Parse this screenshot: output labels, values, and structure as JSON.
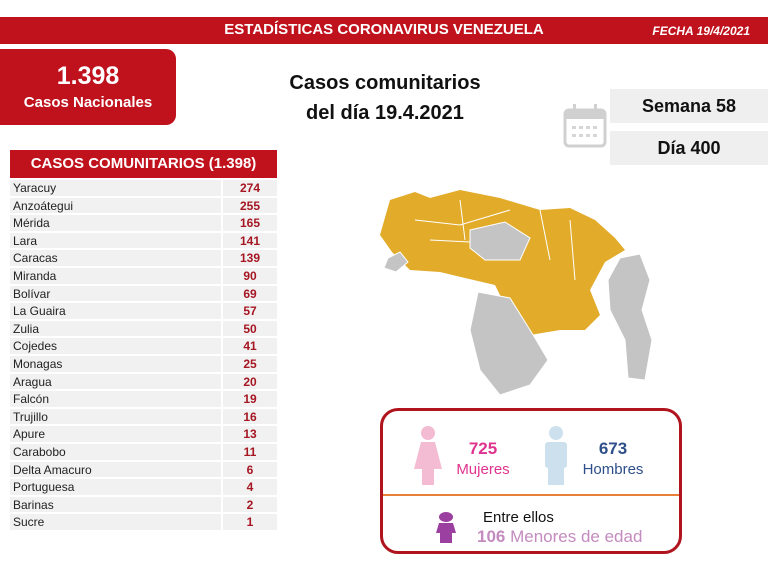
{
  "header": {
    "title": "ESTADÍSTICAS CORONAVIRUS VENEZUELA",
    "date": "FECHA 19/4/2021"
  },
  "national": {
    "value": "1.398",
    "label": "Casos Nacionales"
  },
  "main_title": {
    "line1": "Casos comunitarios",
    "line2": "del día 19.4.2021"
  },
  "calendar": {
    "icon": "calendar-icon",
    "week": "Semana 58",
    "day": "Día 400"
  },
  "table": {
    "header": "CASOS COMUNITARIOS (1.398)",
    "rows": [
      {
        "name": "Yaracuy",
        "value": "274"
      },
      {
        "name": "Anzoátegui",
        "value": "255"
      },
      {
        "name": "Mérida",
        "value": "165"
      },
      {
        "name": "Lara",
        "value": "141"
      },
      {
        "name": "Caracas",
        "value": "139"
      },
      {
        "name": "Miranda",
        "value": "90"
      },
      {
        "name": "Bolívar",
        "value": "69"
      },
      {
        "name": "La Guaira",
        "value": "57"
      },
      {
        "name": "Zulia",
        "value": "50"
      },
      {
        "name": "Cojedes",
        "value": "41"
      },
      {
        "name": "Monagas",
        "value": "25"
      },
      {
        "name": "Aragua",
        "value": "20"
      },
      {
        "name": "Falcón",
        "value": "19"
      },
      {
        "name": "Trujillo",
        "value": "16"
      },
      {
        "name": "Apure",
        "value": "13"
      },
      {
        "name": "Carabobo",
        "value": "11"
      },
      {
        "name": "Delta Amacuro",
        "value": "6"
      },
      {
        "name": "Portuguesa",
        "value": "4"
      },
      {
        "name": "Barinas",
        "value": "2"
      },
      {
        "name": "Sucre",
        "value": "1"
      }
    ]
  },
  "map": {
    "affected_color": "#e2ab2a",
    "unaffected_color": "#c4c4c4"
  },
  "gender": {
    "women_count": "725",
    "women_label": "Mujeres",
    "men_count": "673",
    "men_label": "Hombres",
    "minors_intro": "Entre ellos",
    "minors_count": "106",
    "minors_label": "Menores de edad",
    "colors": {
      "women": "#e0338f",
      "men": "#2e4f8a",
      "minors": "#c48bbf"
    }
  }
}
